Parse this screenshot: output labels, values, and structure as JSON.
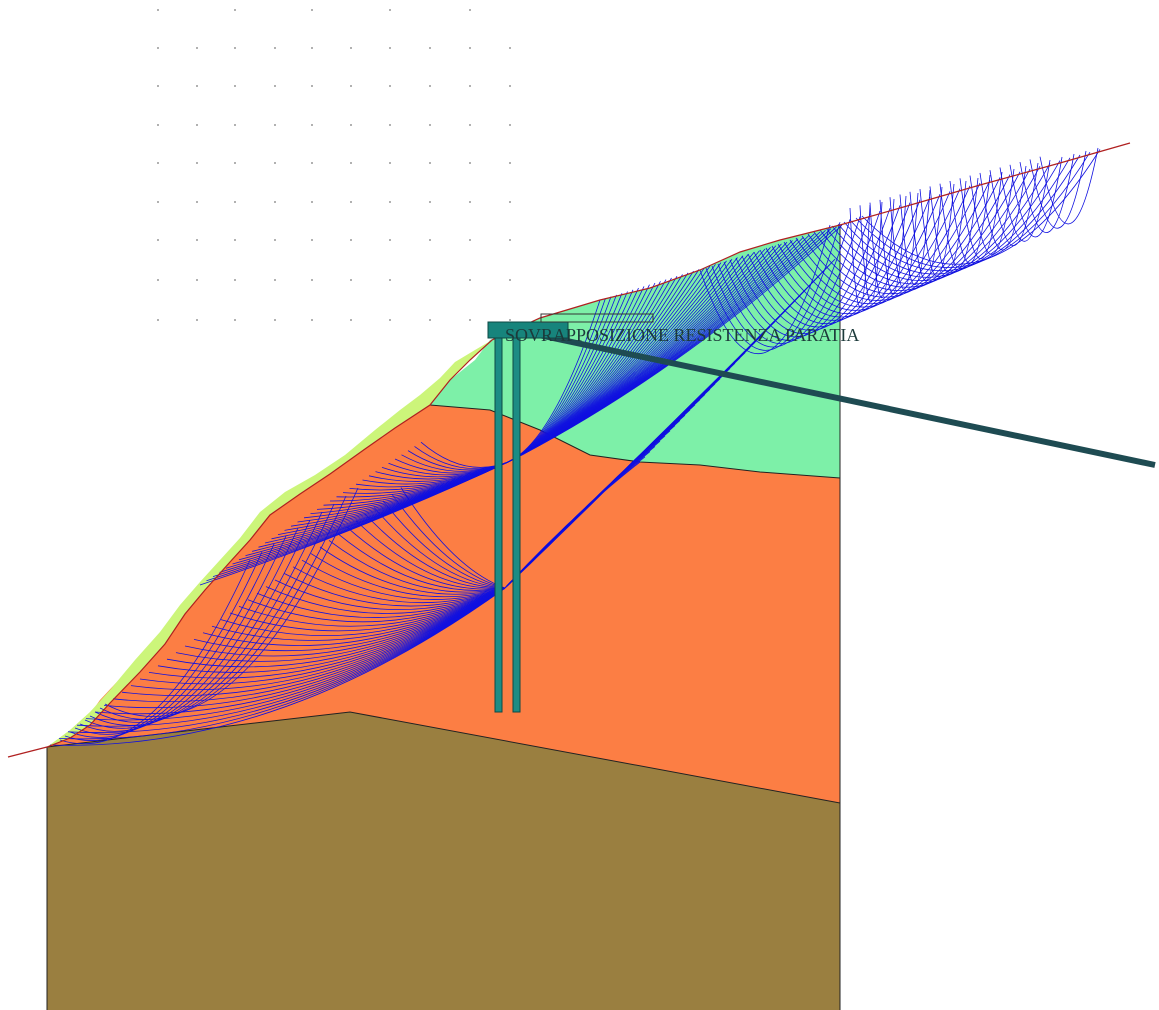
{
  "diagram": {
    "label": "SOVRAPPOSIZIONE RESISTENZA PARATIA",
    "colors": {
      "bedrock": "#9a7f40",
      "clay": "#fc7e44",
      "upper_soil": "#7df0a8",
      "topsoil": "#ccf57a",
      "pile": "#1c8c84",
      "pile_cap": "#17847c",
      "anchor": "#1e4b52",
      "slip_surface": "#1010e0",
      "ground_profile": "#b02020",
      "grid_point": "#7a7a7a"
    }
  }
}
